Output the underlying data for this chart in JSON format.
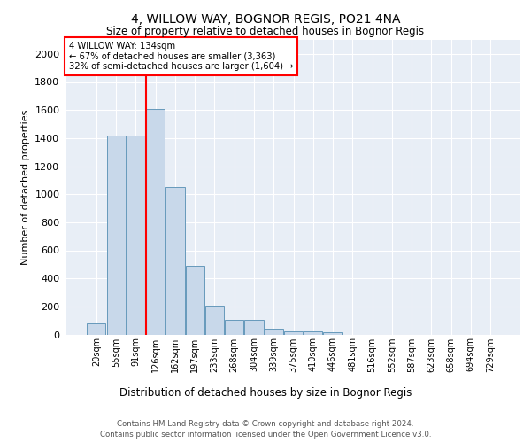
{
  "title1": "4, WILLOW WAY, BOGNOR REGIS, PO21 4NA",
  "title2": "Size of property relative to detached houses in Bognor Regis",
  "xlabel": "Distribution of detached houses by size in Bognor Regis",
  "ylabel": "Number of detached properties",
  "bar_labels": [
    "20sqm",
    "55sqm",
    "91sqm",
    "126sqm",
    "162sqm",
    "197sqm",
    "233sqm",
    "268sqm",
    "304sqm",
    "339sqm",
    "375sqm",
    "410sqm",
    "446sqm",
    "481sqm",
    "516sqm",
    "552sqm",
    "587sqm",
    "623sqm",
    "658sqm",
    "694sqm",
    "729sqm"
  ],
  "bar_values": [
    80,
    1420,
    1420,
    1610,
    1050,
    490,
    205,
    105,
    105,
    40,
    25,
    20,
    15,
    0,
    0,
    0,
    0,
    0,
    0,
    0,
    0
  ],
  "bar_color": "#c8d8ea",
  "bar_edge_color": "#6699bb",
  "annotation_line1": "4 WILLOW WAY: 134sqm",
  "annotation_line2": "← 67% of detached houses are smaller (3,363)",
  "annotation_line3": "32% of semi-detached houses are larger (1,604) →",
  "ylim": [
    0,
    2100
  ],
  "yticks": [
    0,
    200,
    400,
    600,
    800,
    1000,
    1200,
    1400,
    1600,
    1800,
    2000
  ],
  "footer1": "Contains HM Land Registry data © Crown copyright and database right 2024.",
  "footer2": "Contains public sector information licensed under the Open Government Licence v3.0.",
  "plot_bg_color": "#e8eef6"
}
